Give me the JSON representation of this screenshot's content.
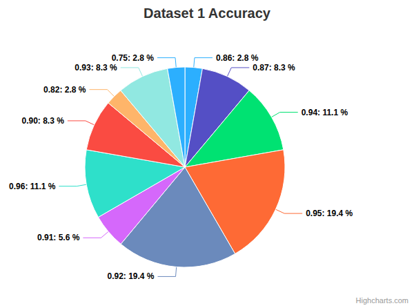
{
  "chart_data": {
    "type": "pie",
    "title": "Dataset 1 Accuracy",
    "categories": [
      "0.86",
      "0.87",
      "0.94",
      "0.95",
      "0.92",
      "0.91",
      "0.96",
      "0.90",
      "0.82",
      "0.93",
      "0.75"
    ],
    "values": [
      2.8,
      8.3,
      11.1,
      19.4,
      19.4,
      5.6,
      11.1,
      8.3,
      2.8,
      8.3,
      2.8
    ],
    "value_labels": [
      "0.86: 2.8 %",
      "0.87: 8.3 %",
      "0.94: 11.1 %",
      "0.95: 19.4 %",
      "0.92: 19.4 %",
      "0.91: 5.6 %",
      "0.96: 11.1 %",
      "0.90: 8.3 %",
      "0.82: 2.8 %",
      "0.93: 8.3 %",
      "0.75: 2.8 %"
    ],
    "colors": [
      "#2caffe",
      "#544fc5",
      "#00e272",
      "#fe6a35",
      "#6b8abc",
      "#d568fb",
      "#2ee0ca",
      "#fa4b42",
      "#feb56a",
      "#91e8e1",
      "#2caffe"
    ],
    "data_labels": true,
    "annotations": [
      "Highcharts.com"
    ]
  }
}
